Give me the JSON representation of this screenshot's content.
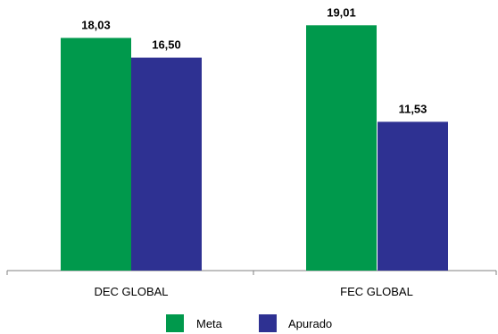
{
  "chart_data": {
    "type": "bar",
    "categories": [
      "DEC GLOBAL",
      "FEC GLOBAL"
    ],
    "series": [
      {
        "name": "Meta",
        "values": [
          18.03,
          19.01
        ],
        "labels": [
          "18,03",
          "19,01"
        ],
        "color": "#00994c"
      },
      {
        "name": "Apurado",
        "values": [
          16.5,
          11.53
        ],
        "labels": [
          "16,50",
          "11,53"
        ],
        "color": "#2e3192"
      }
    ],
    "ylim": [
      0,
      20
    ],
    "grid": false,
    "legend": "bottom",
    "axis_color": "#808080"
  }
}
